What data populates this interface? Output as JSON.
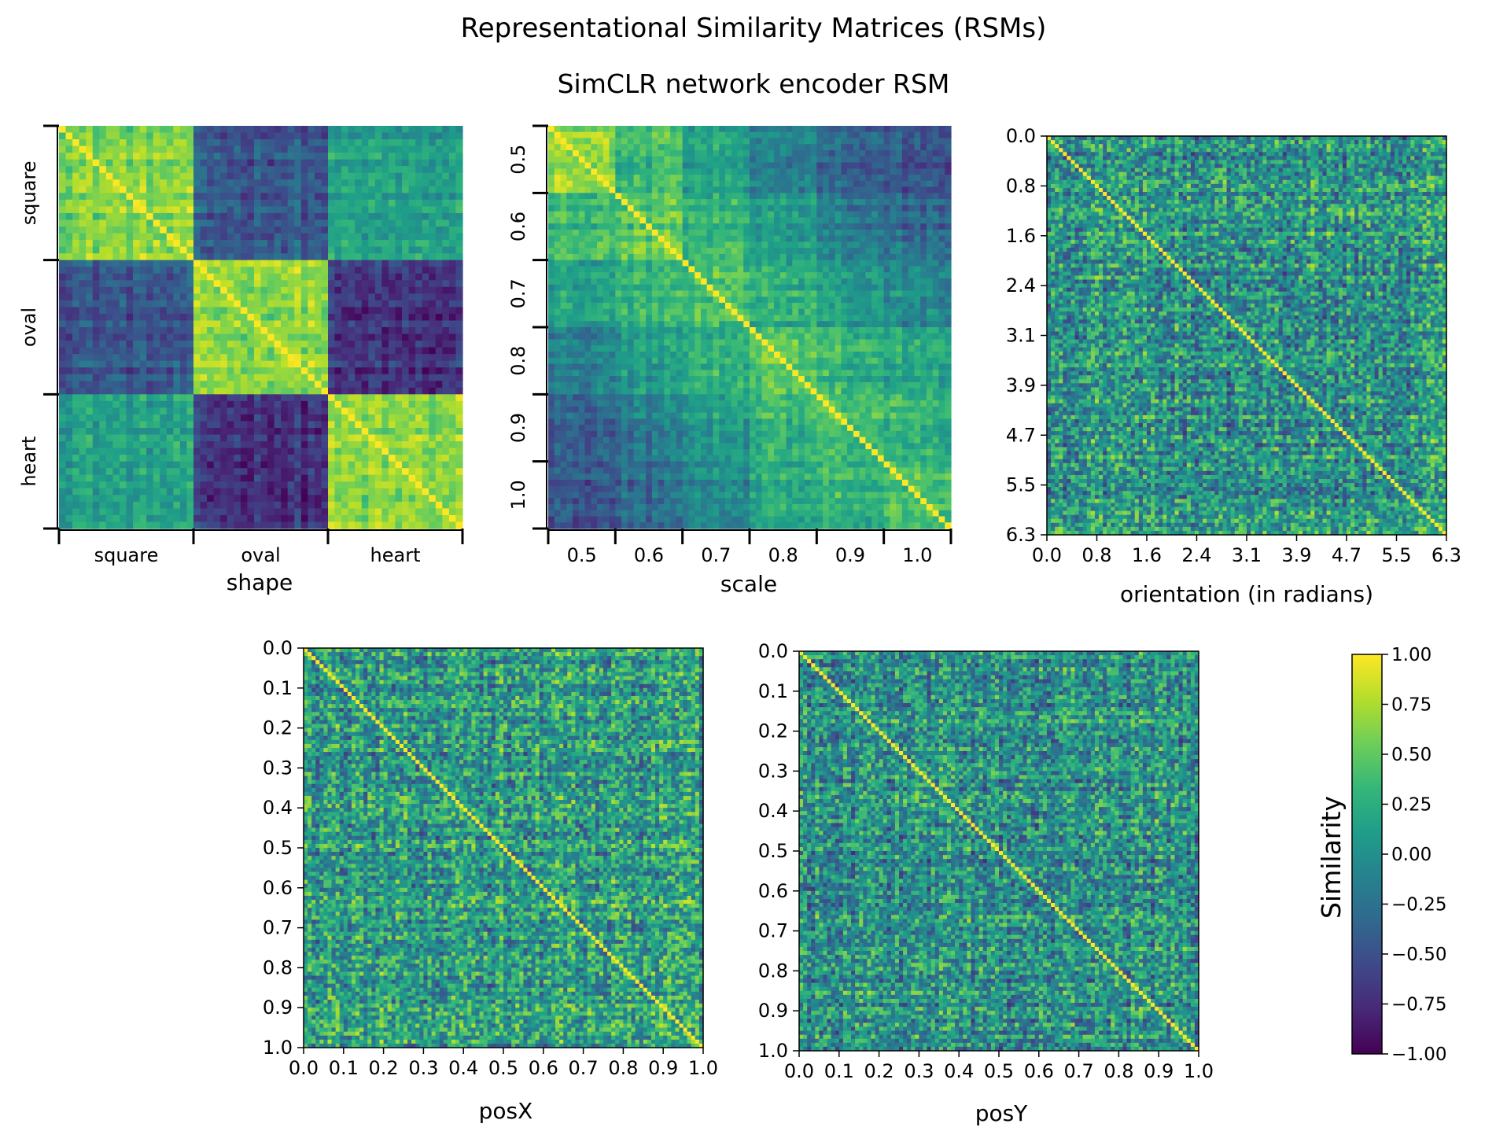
{
  "figure": {
    "suptitle": "Representational Similarity Matrices (RSMs)",
    "subtitle": "SimCLR network encoder RSM"
  },
  "colormap": {
    "name": "viridis",
    "stops": [
      "#440154",
      "#482878",
      "#3e4989",
      "#31688e",
      "#26828e",
      "#1f9e89",
      "#35b779",
      "#6ece58",
      "#b5de2b",
      "#fde725"
    ]
  },
  "chart_data": [
    {
      "type": "heatmap",
      "name": "shape",
      "xlabel": "shape",
      "categories": [
        "square",
        "oval",
        "heart"
      ],
      "block_similarity": [
        [
          0.62,
          -0.45,
          0.12
        ],
        [
          -0.45,
          0.68,
          -0.72
        ],
        [
          0.12,
          -0.72,
          0.62
        ]
      ],
      "zlim": [
        -1.0,
        1.0
      ]
    },
    {
      "type": "heatmap",
      "name": "scale",
      "xlabel": "scale",
      "categories": [
        "0.5",
        "0.6",
        "0.7",
        "0.8",
        "0.9",
        "1.0"
      ],
      "block_similarity": [
        [
          0.68,
          0.35,
          0.15,
          -0.15,
          -0.35,
          -0.45
        ],
        [
          0.35,
          0.45,
          0.3,
          0.05,
          -0.15,
          -0.3
        ],
        [
          0.15,
          0.3,
          0.42,
          0.25,
          0.1,
          -0.05
        ],
        [
          -0.15,
          0.05,
          0.25,
          0.42,
          0.3,
          0.18
        ],
        [
          -0.35,
          -0.15,
          0.1,
          0.3,
          0.42,
          0.32
        ],
        [
          -0.45,
          -0.3,
          -0.05,
          0.18,
          0.32,
          0.42
        ]
      ],
      "zlim": [
        -1.0,
        1.0
      ]
    },
    {
      "type": "heatmap",
      "name": "orientation",
      "xlabel": "orientation (in radians)",
      "ticks": [
        "0.0",
        "0.8",
        "1.6",
        "2.4",
        "3.1",
        "3.9",
        "4.7",
        "5.5",
        "6.3"
      ],
      "pattern": "noise-with-diagonal",
      "mean_similarity": 0.05,
      "zlim": [
        -1.0,
        1.0
      ]
    },
    {
      "type": "heatmap",
      "name": "posX",
      "xlabel": "posX",
      "ticks": [
        "0.0",
        "0.1",
        "0.2",
        "0.3",
        "0.4",
        "0.5",
        "0.6",
        "0.7",
        "0.8",
        "0.9",
        "1.0"
      ],
      "pattern": "noise-with-diagonal",
      "mean_similarity": 0.1,
      "zlim": [
        -1.0,
        1.0
      ]
    },
    {
      "type": "heatmap",
      "name": "posY",
      "xlabel": "posY",
      "ticks": [
        "0.0",
        "0.1",
        "0.2",
        "0.3",
        "0.4",
        "0.5",
        "0.6",
        "0.7",
        "0.8",
        "0.9",
        "1.0"
      ],
      "pattern": "noise-with-diagonal",
      "mean_similarity": 0.0,
      "zlim": [
        -1.0,
        1.0
      ]
    }
  ],
  "colorbar": {
    "label": "Similarity",
    "range": [
      -1.0,
      1.0
    ],
    "ticks": [
      "1.00",
      "0.75",
      "0.50",
      "0.25",
      "0.00",
      "−0.25",
      "−0.50",
      "−0.75",
      "−1.00"
    ]
  }
}
